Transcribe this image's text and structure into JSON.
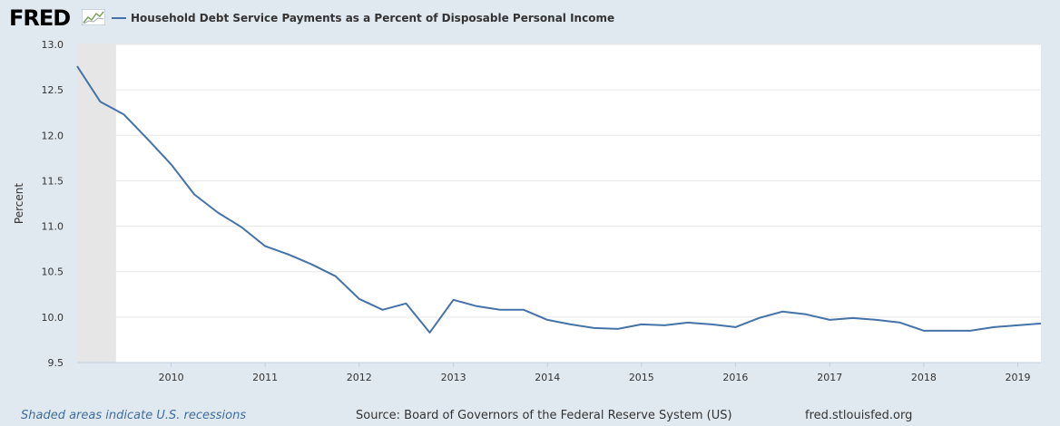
{
  "brand": {
    "name": "FRED"
  },
  "legend": {
    "label": "Household Debt Service Payments as a Percent of Disposable Personal Income"
  },
  "footer": {
    "recession_note": "Shaded areas indicate U.S. recessions",
    "source": "Source: Board of Governors of the Federal Reserve System (US)",
    "site": "fred.stlouisfed.org"
  },
  "colors": {
    "series": "#4572a7",
    "background": "#e1e9f0",
    "plot": "#ffffff",
    "recession": "#e6e6e6"
  },
  "chart_data": {
    "type": "line",
    "title": "",
    "xlabel": "",
    "ylabel": "Percent",
    "ylim": [
      9.5,
      13.0
    ],
    "xlim": [
      "2009-01-01",
      "2019-04-01"
    ],
    "grid": true,
    "legend_position": "top",
    "yticks": [
      "9.5",
      "10.0",
      "10.5",
      "11.0",
      "11.5",
      "12.0",
      "12.5",
      "13.0"
    ],
    "xticks": [
      "2010",
      "2011",
      "2012",
      "2013",
      "2014",
      "2015",
      "2016",
      "2017",
      "2018",
      "2019"
    ],
    "recessions": [
      {
        "start": "2009-01-01",
        "end": "2009-06-01"
      }
    ],
    "series": [
      {
        "name": "Household Debt Service Payments as a Percent of Disposable Personal Income",
        "x": [
          "2009-01-01",
          "2009-04-01",
          "2009-07-01",
          "2009-10-01",
          "2010-01-01",
          "2010-04-01",
          "2010-07-01",
          "2010-10-01",
          "2011-01-01",
          "2011-04-01",
          "2011-07-01",
          "2011-10-01",
          "2012-01-01",
          "2012-04-01",
          "2012-07-01",
          "2012-10-01",
          "2013-01-01",
          "2013-04-01",
          "2013-07-01",
          "2013-10-01",
          "2014-01-01",
          "2014-04-01",
          "2014-07-01",
          "2014-10-01",
          "2015-01-01",
          "2015-04-01",
          "2015-07-01",
          "2015-10-01",
          "2016-01-01",
          "2016-04-01",
          "2016-07-01",
          "2016-10-01",
          "2017-01-01",
          "2017-04-01",
          "2017-07-01",
          "2017-10-01",
          "2018-01-01",
          "2018-04-01",
          "2018-07-01",
          "2018-10-01",
          "2019-01-01",
          "2019-04-01"
        ],
        "values": [
          12.76,
          12.37,
          12.23,
          11.96,
          11.68,
          11.35,
          11.15,
          10.99,
          10.78,
          10.69,
          10.58,
          10.45,
          10.2,
          10.08,
          10.15,
          9.83,
          10.19,
          10.12,
          10.08,
          10.08,
          9.97,
          9.92,
          9.88,
          9.87,
          9.92,
          9.91,
          9.94,
          9.92,
          9.89,
          9.99,
          10.06,
          10.03,
          9.97,
          9.99,
          9.97,
          9.94,
          9.85,
          9.85,
          9.85,
          9.89,
          9.91,
          9.93
        ]
      }
    ]
  }
}
